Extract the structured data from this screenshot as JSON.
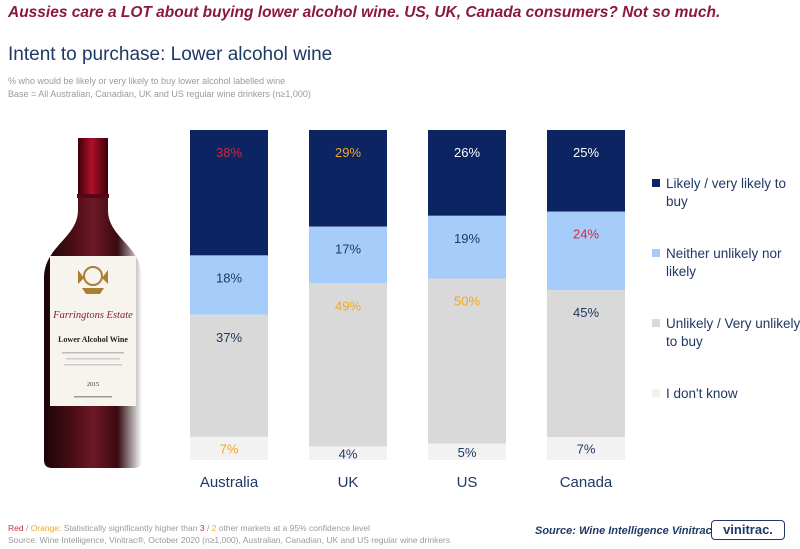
{
  "headline": "Aussies care a LOT about buying lower alcohol wine. US, UK, Canada consumers? Not so much.",
  "subtitle": "Intent to purchase: Lower alcohol wine",
  "note_1": "% who would be likely or very likely to buy lower alcohol labelled wine",
  "note_2": "Base = All Australian, Canadian, UK and US regular wine drinkers (n≥1,000)",
  "bottle": {
    "brand": "Farringtons Estate",
    "product": "Lower Alcohol Wine",
    "year": "2015"
  },
  "chart_data": {
    "type": "bar",
    "stacked": true,
    "percent": true,
    "categories": [
      "Australia",
      "UK",
      "US",
      "Canada"
    ],
    "series": [
      {
        "name": "Likely / very likely to buy",
        "values": [
          38,
          29,
          26,
          25
        ],
        "color": "#0c2461",
        "label_colors": [
          "#d2283c",
          "#f0a824",
          "#ffffff",
          "#ffffff"
        ]
      },
      {
        "name": "Neither unlikely nor likely",
        "values": [
          18,
          17,
          19,
          24
        ],
        "color": "#a6cdfa",
        "label_colors": [
          "#1f3864",
          "#1f3864",
          "#1f3864",
          "#d2283c"
        ]
      },
      {
        "name": "Unlikely / Very unlikely to buy",
        "values": [
          37,
          49,
          50,
          45
        ],
        "color": "#d9d9d9",
        "label_colors": [
          "#1f3864",
          "#f0a824",
          "#f0a824",
          "#1f3864"
        ]
      },
      {
        "name": "I don't know",
        "values": [
          7,
          4,
          5,
          7
        ],
        "color": "#f2f2f2",
        "label_colors": [
          "#f0a824",
          "#1f3864",
          "#1f3864",
          "#1f3864"
        ]
      }
    ],
    "value_suffix": "%"
  },
  "legend": {
    "items": [
      {
        "label": "Likely / very likely to buy",
        "color": "#0c2461"
      },
      {
        "label": "Neither unlikely nor likely",
        "color": "#a6cdfa"
      },
      {
        "label": "Unlikely / Very unlikely to buy",
        "color": "#d9d9d9"
      },
      {
        "label": "I don't know",
        "color": "#f2f2f2"
      }
    ]
  },
  "footer": {
    "sig_red": "Red",
    "sig_sep": " / ",
    "sig_orange": "Orange",
    "sig_text_1": ": Statistically significantly higher than ",
    "sig_num_red": "3",
    "sig_num_orange": "2",
    "sig_text_2": " other markets at a 95% confidence level",
    "source_line": "Source: Wine Intelligence, Vinitrac®, October 2020 (n≥1,000), Australian, Canadian, UK and US regular wine drinkers",
    "source_credit": "Source: Wine Intelligence Vinitrac",
    "logo": "vinitrac."
  },
  "colors": {
    "red": "#d2283c",
    "orange": "#f0a824",
    "navy": "#1f3864"
  }
}
